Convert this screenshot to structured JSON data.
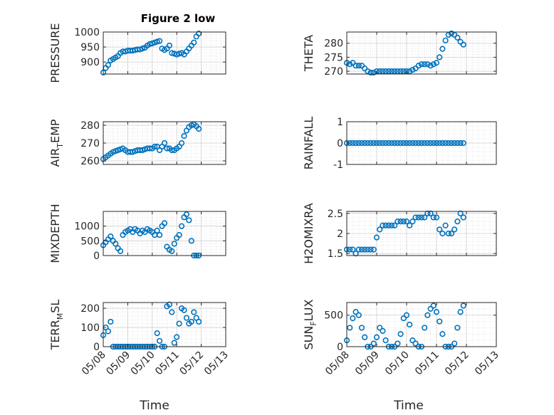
{
  "figure": {
    "title": "Figure 2 low",
    "xlabel": "Time",
    "xtick_labels": [
      "05/08",
      "05/09",
      "05/10",
      "05/11",
      "05/12",
      "05/13"
    ],
    "marker_color": "#0072BD"
  },
  "chart_data": [
    {
      "type": "scatter",
      "id": "pressure",
      "ylabel": "PRESSURE",
      "sub": "",
      "ylim": [
        860,
        1000
      ],
      "yticks": [
        900,
        950,
        1000
      ],
      "ytick_labels": [
        "900",
        "950",
        "1000"
      ],
      "x": [
        0.0,
        0.1,
        0.2,
        0.3,
        0.4,
        0.5,
        0.6,
        0.7,
        0.8,
        0.9,
        1.0,
        1.1,
        1.2,
        1.3,
        1.4,
        1.5,
        1.6,
        1.7,
        1.8,
        1.9,
        2.0,
        2.1,
        2.2,
        2.3,
        2.4,
        2.5,
        2.6,
        2.7,
        2.8,
        2.9,
        3.0,
        3.1,
        3.2,
        3.3,
        3.4,
        3.5,
        3.6,
        3.7,
        3.8,
        3.9
      ],
      "y": [
        865,
        880,
        890,
        905,
        910,
        915,
        920,
        930,
        935,
        935,
        938,
        938,
        938,
        940,
        942,
        942,
        945,
        948,
        955,
        960,
        962,
        965,
        968,
        970,
        945,
        940,
        945,
        955,
        930,
        928,
        925,
        928,
        930,
        925,
        935,
        945,
        955,
        965,
        985,
        995
      ]
    },
    {
      "type": "scatter",
      "id": "theta",
      "ylabel": "THETA",
      "sub": "",
      "ylim": [
        269,
        284
      ],
      "yticks": [
        270,
        275,
        280
      ],
      "ytick_labels": [
        "270",
        "275",
        "280"
      ],
      "x": [
        0.0,
        0.1,
        0.2,
        0.3,
        0.4,
        0.5,
        0.6,
        0.7,
        0.8,
        0.9,
        1.0,
        1.1,
        1.2,
        1.3,
        1.4,
        1.5,
        1.6,
        1.7,
        1.8,
        1.9,
        2.0,
        2.1,
        2.2,
        2.3,
        2.4,
        2.5,
        2.6,
        2.7,
        2.8,
        2.9,
        3.0,
        3.1,
        3.2,
        3.3,
        3.4,
        3.5,
        3.6,
        3.7,
        3.8,
        3.9
      ],
      "y": [
        273,
        272.5,
        273,
        272,
        272,
        272,
        271,
        270,
        269.5,
        269.5,
        270,
        270,
        270,
        270,
        270,
        270,
        270,
        270,
        270,
        270,
        270,
        270,
        270.5,
        271,
        272,
        272.5,
        272.5,
        272.5,
        272,
        272.5,
        273,
        275,
        278,
        281,
        283,
        283.5,
        283,
        282,
        280.5,
        279.5
      ]
    },
    {
      "type": "scatter",
      "id": "airtemp",
      "ylabel": "AIR",
      "sub": "T",
      "ylabel_suffix": "EMP",
      "ylim": [
        258,
        282
      ],
      "yticks": [
        260,
        270,
        280
      ],
      "ytick_labels": [
        "260",
        "270",
        "280"
      ],
      "x": [
        0.0,
        0.1,
        0.2,
        0.3,
        0.4,
        0.5,
        0.6,
        0.7,
        0.8,
        0.9,
        1.0,
        1.1,
        1.2,
        1.3,
        1.4,
        1.5,
        1.6,
        1.7,
        1.8,
        1.9,
        2.0,
        2.1,
        2.2,
        2.3,
        2.4,
        2.5,
        2.6,
        2.7,
        2.8,
        2.9,
        3.0,
        3.1,
        3.2,
        3.3,
        3.4,
        3.5,
        3.6,
        3.7,
        3.8,
        3.9
      ],
      "y": [
        261,
        262,
        263,
        264,
        265,
        265.5,
        266,
        266.5,
        267,
        266,
        265,
        265,
        265,
        265.5,
        266,
        266,
        266,
        266.5,
        267,
        267,
        267,
        268,
        268,
        266,
        268,
        270,
        267,
        267,
        266,
        266,
        267,
        268,
        270,
        274,
        277,
        279,
        280,
        280.5,
        279.5,
        278
      ]
    },
    {
      "type": "scatter",
      "id": "rainfall",
      "ylabel": "RAINFALL",
      "sub": "",
      "ylim": [
        -1,
        1
      ],
      "yticks": [
        -1,
        0,
        1
      ],
      "ytick_labels": [
        "-1",
        "0",
        "1"
      ],
      "x": [
        0.0,
        0.1,
        0.2,
        0.3,
        0.4,
        0.5,
        0.6,
        0.7,
        0.8,
        0.9,
        1.0,
        1.1,
        1.2,
        1.3,
        1.4,
        1.5,
        1.6,
        1.7,
        1.8,
        1.9,
        2.0,
        2.1,
        2.2,
        2.3,
        2.4,
        2.5,
        2.6,
        2.7,
        2.8,
        2.9,
        3.0,
        3.1,
        3.2,
        3.3,
        3.4,
        3.5,
        3.6,
        3.7,
        3.8,
        3.9
      ],
      "y": [
        0,
        0,
        0,
        0,
        0,
        0,
        0,
        0,
        0,
        0,
        0,
        0,
        0,
        0,
        0,
        0,
        0,
        0,
        0,
        0,
        0,
        0,
        0,
        0,
        0,
        0,
        0,
        0,
        0,
        0,
        0,
        0,
        0,
        0,
        0,
        0,
        0,
        0,
        0,
        0
      ]
    },
    {
      "type": "scatter",
      "id": "mixdepth",
      "ylabel": "MIXDEPTH",
      "sub": "",
      "ylim": [
        0,
        1500
      ],
      "yticks": [
        0,
        500,
        1000
      ],
      "ytick_labels": [
        "0",
        "500",
        "1000"
      ],
      "x": [
        0.0,
        0.1,
        0.2,
        0.3,
        0.4,
        0.5,
        0.6,
        0.7,
        0.8,
        0.9,
        1.0,
        1.1,
        1.2,
        1.3,
        1.4,
        1.5,
        1.6,
        1.7,
        1.8,
        1.9,
        2.0,
        2.1,
        2.2,
        2.3,
        2.4,
        2.5,
        2.6,
        2.7,
        2.8,
        2.9,
        3.0,
        3.1,
        3.2,
        3.3,
        3.4,
        3.5,
        3.6,
        3.7,
        3.8,
        3.9
      ],
      "y": [
        350,
        450,
        550,
        650,
        500,
        400,
        250,
        150,
        700,
        800,
        850,
        900,
        800,
        900,
        850,
        750,
        850,
        800,
        900,
        850,
        800,
        700,
        850,
        700,
        1000,
        1100,
        300,
        200,
        150,
        400,
        600,
        700,
        1000,
        1300,
        1400,
        1200,
        500,
        0,
        0,
        0
      ]
    },
    {
      "type": "scatter",
      "id": "h2omixra",
      "ylabel": "H2OMIXRA",
      "sub": "",
      "ylim": [
        1.45,
        2.55
      ],
      "yticks": [
        1.5,
        2,
        2.5
      ],
      "ytick_labels": [
        "1.5",
        "2",
        "2.5"
      ],
      "x": [
        0.0,
        0.1,
        0.2,
        0.3,
        0.4,
        0.5,
        0.6,
        0.7,
        0.8,
        0.9,
        1.0,
        1.1,
        1.2,
        1.3,
        1.4,
        1.5,
        1.6,
        1.7,
        1.8,
        1.9,
        2.0,
        2.1,
        2.2,
        2.3,
        2.4,
        2.5,
        2.6,
        2.7,
        2.8,
        2.9,
        3.0,
        3.1,
        3.2,
        3.3,
        3.4,
        3.5,
        3.6,
        3.7,
        3.8,
        3.9
      ],
      "y": [
        1.6,
        1.6,
        1.6,
        1.5,
        1.6,
        1.6,
        1.6,
        1.6,
        1.6,
        1.6,
        1.9,
        2.1,
        2.2,
        2.2,
        2.2,
        2.2,
        2.2,
        2.3,
        2.3,
        2.3,
        2.3,
        2.2,
        2.3,
        2.4,
        2.4,
        2.4,
        2.4,
        2.5,
        2.5,
        2.4,
        2.4,
        2.1,
        2.0,
        2.2,
        2.0,
        2.0,
        2.1,
        2.3,
        2.5,
        2.4
      ]
    },
    {
      "type": "scatter",
      "id": "terrmsl",
      "ylabel": "TERR",
      "sub": "M",
      "ylabel_suffix": "SL",
      "ylim": [
        0,
        230
      ],
      "yticks": [
        0,
        100,
        200
      ],
      "ytick_labels": [
        "0",
        "100",
        "200"
      ],
      "x": [
        0.0,
        0.1,
        0.2,
        0.3,
        0.4,
        0.5,
        0.6,
        0.7,
        0.8,
        0.9,
        1.0,
        1.1,
        1.2,
        1.3,
        1.4,
        1.5,
        1.6,
        1.7,
        1.8,
        1.9,
        2.0,
        2.1,
        2.2,
        2.3,
        2.4,
        2.5,
        2.6,
        2.7,
        2.8,
        2.9,
        3.0,
        3.1,
        3.2,
        3.3,
        3.4,
        3.5,
        3.6,
        3.7,
        3.8,
        3.9
      ],
      "y": [
        60,
        100,
        80,
        130,
        0,
        0,
        0,
        0,
        0,
        0,
        0,
        0,
        0,
        0,
        0,
        0,
        0,
        0,
        0,
        0,
        0,
        0,
        70,
        30,
        0,
        0,
        210,
        220,
        180,
        20,
        50,
        120,
        200,
        190,
        150,
        120,
        130,
        180,
        150,
        130
      ]
    },
    {
      "type": "scatter",
      "id": "sunflux",
      "ylabel": "SUN",
      "sub": "F",
      "ylabel_suffix": "LUX",
      "ylim": [
        0,
        700
      ],
      "yticks": [
        0,
        500
      ],
      "ytick_labels": [
        "0",
        "500"
      ],
      "x": [
        0.0,
        0.1,
        0.2,
        0.3,
        0.4,
        0.5,
        0.6,
        0.7,
        0.8,
        0.9,
        1.0,
        1.1,
        1.2,
        1.3,
        1.4,
        1.5,
        1.6,
        1.7,
        1.8,
        1.9,
        2.0,
        2.1,
        2.2,
        2.3,
        2.4,
        2.5,
        2.6,
        2.7,
        2.8,
        2.9,
        3.0,
        3.1,
        3.2,
        3.3,
        3.4,
        3.5,
        3.6,
        3.7,
        3.8,
        3.9
      ],
      "y": [
        100,
        300,
        450,
        550,
        500,
        300,
        150,
        0,
        0,
        50,
        150,
        300,
        250,
        100,
        0,
        0,
        0,
        50,
        200,
        450,
        500,
        350,
        100,
        50,
        0,
        0,
        300,
        500,
        600,
        650,
        550,
        400,
        200,
        0,
        0,
        0,
        50,
        300,
        550,
        650
      ]
    }
  ]
}
